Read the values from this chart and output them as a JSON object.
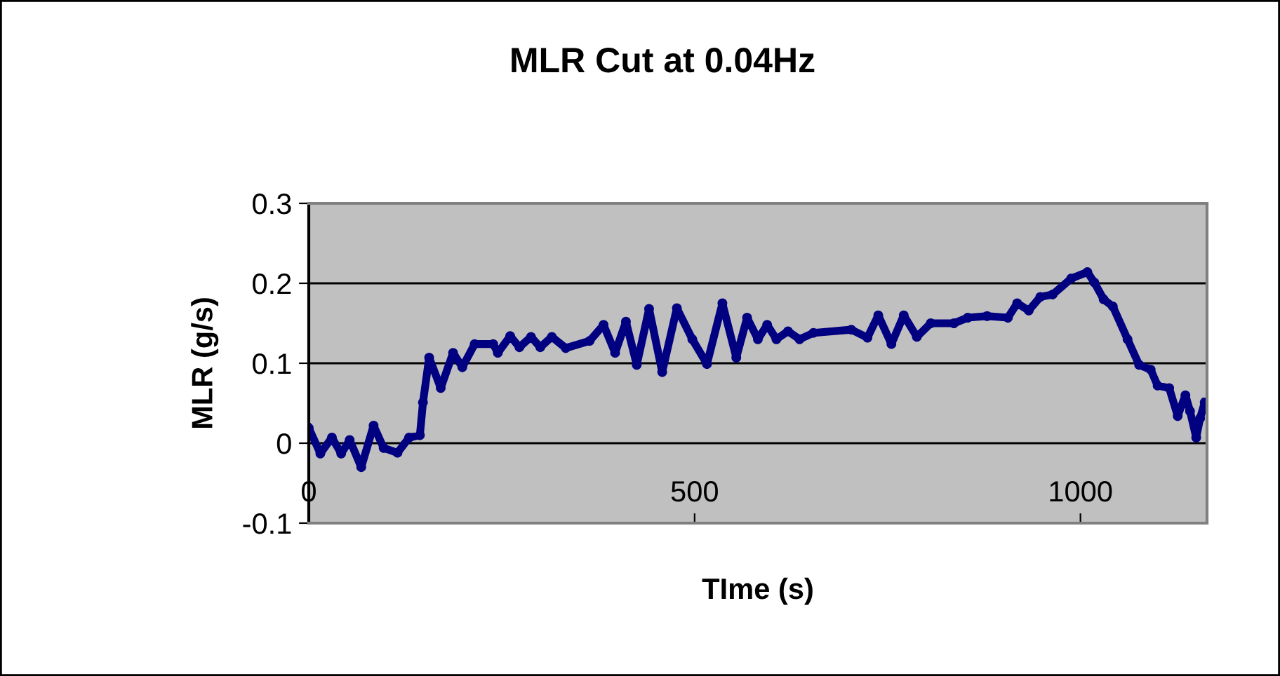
{
  "chart_data": {
    "type": "line",
    "title": "MLR Cut at 0.04Hz",
    "xlabel": "TIme (s)",
    "ylabel": "MLR (g/s)",
    "xlim": [
      0,
      1164
    ],
    "xticks": [
      0,
      500,
      1000
    ],
    "ylim": [
      -0.1,
      0.3
    ],
    "yticks": [
      -0.1,
      0,
      0.1,
      0.2,
      0.3
    ],
    "grid": "y",
    "marker": "circle",
    "line_style": "solid",
    "series": [
      {
        "color": "#000080",
        "x": [
          0,
          15,
          30,
          42,
          53,
          68,
          84,
          97,
          115,
          130,
          144,
          148,
          156,
          171,
          187,
          199,
          215,
          239,
          245,
          261,
          273,
          288,
          300,
          315,
          333,
          364,
          382,
          397,
          411,
          425,
          441,
          458,
          477,
          497,
          516,
          536,
          554,
          568,
          582,
          594,
          606,
          621,
          636,
          654,
          703,
          724,
          738,
          755,
          771,
          788,
          806,
          836,
          854,
          879,
          906,
          918,
          933,
          948,
          964,
          988,
          1009,
          1018,
          1030,
          1042,
          1061,
          1076,
          1091,
          1100,
          1115,
          1126,
          1136,
          1142,
          1150,
          1155,
          1161
        ],
        "values": [
          0.019,
          -0.013,
          0.007,
          -0.013,
          0.004,
          -0.03,
          0.022,
          -0.006,
          -0.012,
          0.007,
          0.01,
          0.051,
          0.107,
          0.069,
          0.113,
          0.095,
          0.124,
          0.124,
          0.113,
          0.134,
          0.12,
          0.133,
          0.12,
          0.133,
          0.119,
          0.128,
          0.148,
          0.113,
          0.152,
          0.098,
          0.168,
          0.089,
          0.169,
          0.13,
          0.099,
          0.175,
          0.107,
          0.157,
          0.13,
          0.148,
          0.13,
          0.14,
          0.13,
          0.138,
          0.142,
          0.132,
          0.16,
          0.124,
          0.16,
          0.133,
          0.15,
          0.15,
          0.157,
          0.159,
          0.157,
          0.175,
          0.166,
          0.183,
          0.186,
          0.206,
          0.214,
          0.201,
          0.18,
          0.171,
          0.13,
          0.098,
          0.092,
          0.072,
          0.069,
          0.034,
          0.06,
          0.04,
          0.007,
          0.031,
          0.051
        ]
      }
    ]
  }
}
